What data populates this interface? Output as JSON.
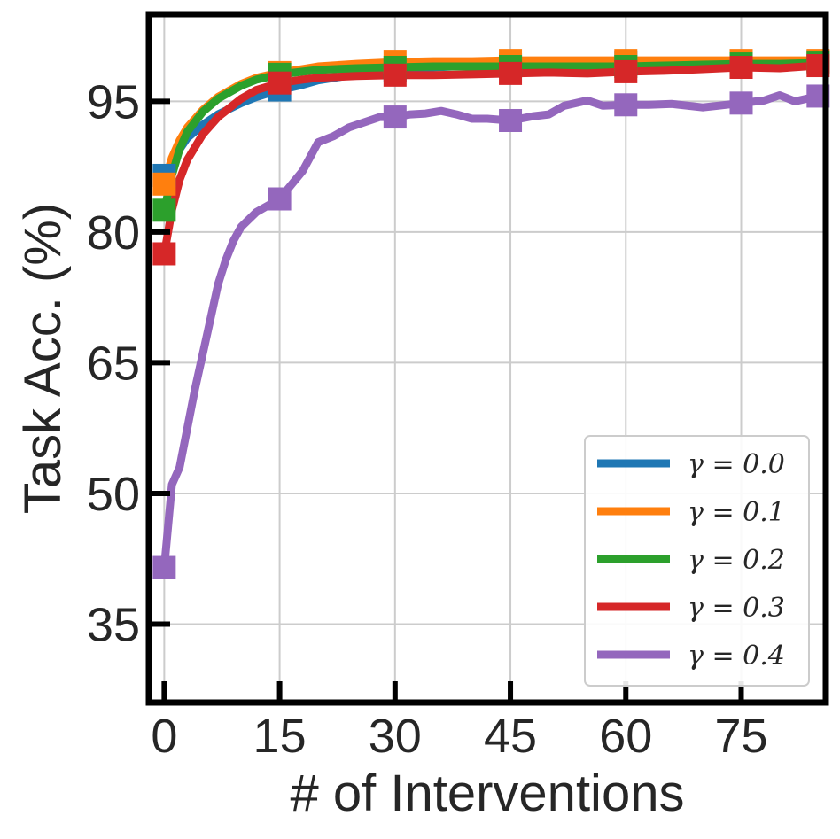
{
  "chart_data": {
    "type": "line",
    "title": "",
    "xlabel": "# of Interventions",
    "ylabel": "Task Acc. (%)",
    "xlim": [
      -2,
      86
    ],
    "ylim": [
      26,
      105
    ],
    "xticks": [
      0,
      15,
      30,
      45,
      60,
      75
    ],
    "xtick_labels": [
      "0",
      "15",
      "30",
      "45",
      "60",
      "75"
    ],
    "yticks": [
      35,
      50,
      65,
      80,
      95
    ],
    "ytick_labels": [
      "35",
      "50",
      "65",
      "80",
      "95"
    ],
    "grid": true,
    "legend_position": "lower-right",
    "marker_x": [
      0,
      15,
      30,
      45,
      60,
      75,
      85
    ],
    "series": [
      {
        "name": "γ = 0.0",
        "color": "#1f77b4",
        "x": [
          0,
          1,
          2,
          3,
          5,
          7,
          10,
          12,
          15,
          18,
          20,
          25,
          30,
          35,
          40,
          45,
          50,
          55,
          60,
          65,
          70,
          75,
          80,
          85
        ],
        "values": [
          86.5,
          88,
          89.5,
          90.8,
          92.3,
          93.5,
          94.8,
          95.5,
          96.3,
          96.9,
          97.4,
          98.1,
          98.6,
          98.9,
          99.1,
          99.2,
          99.3,
          99.4,
          99.4,
          99.5,
          99.5,
          99.6,
          99.6,
          99.6
        ]
      },
      {
        "name": "γ = 0.1",
        "color": "#ff7f0e",
        "x": [
          0,
          1,
          2,
          3,
          5,
          7,
          10,
          12,
          15,
          18,
          20,
          25,
          30,
          35,
          40,
          45,
          50,
          55,
          60,
          65,
          70,
          75,
          80,
          85
        ],
        "values": [
          85.5,
          88.5,
          90.5,
          92,
          94,
          95.5,
          97,
          97.7,
          98.3,
          98.7,
          99,
          99.3,
          99.5,
          99.6,
          99.6,
          99.7,
          99.7,
          99.7,
          99.7,
          99.7,
          99.7,
          99.7,
          99.7,
          99.7
        ]
      },
      {
        "name": "γ = 0.2",
        "color": "#2ca02c",
        "x": [
          0,
          1,
          2,
          3,
          5,
          7,
          10,
          12,
          15,
          18,
          20,
          25,
          30,
          35,
          40,
          45,
          50,
          55,
          60,
          65,
          70,
          75,
          80,
          85
        ],
        "values": [
          82.5,
          86.5,
          89.5,
          91.5,
          93.8,
          95.3,
          96.8,
          97.5,
          98.1,
          98.4,
          98.6,
          98.8,
          98.9,
          99,
          99,
          99,
          99,
          99,
          99,
          99.1,
          99.2,
          99.3,
          99.3,
          99.4
        ]
      },
      {
        "name": "γ = 0.3",
        "color": "#d62728",
        "x": [
          0,
          1,
          2,
          3,
          5,
          7,
          10,
          12,
          15,
          18,
          20,
          25,
          30,
          35,
          40,
          45,
          50,
          55,
          60,
          65,
          70,
          75,
          80,
          85
        ],
        "values": [
          77.5,
          82.5,
          86,
          88.3,
          91.2,
          93.2,
          95.3,
          96.3,
          97.1,
          97.5,
          97.7,
          97.9,
          98,
          98,
          98.1,
          98.2,
          98.3,
          98.2,
          98.4,
          98.5,
          98.7,
          98.9,
          98.8,
          99.1
        ]
      },
      {
        "name": "γ = 0.4",
        "color": "#9467bd",
        "x": [
          0,
          1,
          2,
          3,
          4,
          5,
          6,
          7,
          8,
          9,
          10,
          12,
          15,
          18,
          20,
          22,
          24,
          26,
          28,
          30,
          32,
          34,
          36,
          38,
          40,
          42,
          45,
          48,
          50,
          52,
          55,
          57,
          60,
          63,
          66,
          70,
          72,
          75,
          78,
          80,
          82,
          85
        ],
        "values": [
          41.5,
          51,
          53,
          57.5,
          62,
          66,
          70,
          74,
          76.8,
          79,
          80.6,
          82.3,
          83.8,
          87,
          90.3,
          91,
          92,
          92.6,
          93.2,
          93.2,
          93.5,
          93.6,
          93.9,
          93.5,
          93,
          93,
          92.8,
          93.3,
          93.5,
          94.5,
          95.1,
          94.5,
          94.6,
          94.6,
          94.7,
          94.3,
          94.5,
          94.8,
          95.1,
          95.7,
          95,
          95.6
        ]
      }
    ]
  }
}
